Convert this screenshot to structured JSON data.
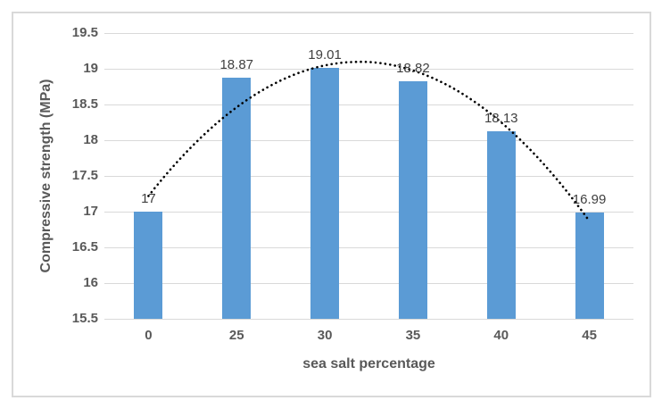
{
  "chart_data": {
    "type": "bar",
    "title": "",
    "xlabel": "sea salt percentage",
    "ylabel": "Compressive strength (MPa)",
    "categories": [
      "0",
      "25",
      "30",
      "35",
      "40",
      "45"
    ],
    "values": [
      17,
      18.87,
      19.01,
      18.82,
      18.13,
      16.99
    ],
    "data_labels": [
      "17",
      "18.87",
      "19.01",
      "18.82",
      "18.13",
      "16.99"
    ],
    "ylim": [
      15.5,
      19.5
    ],
    "ytick_step": 0.5,
    "yticks_top_to_bottom": [
      "19.5",
      "19",
      "18.5",
      "18",
      "17.5",
      "17",
      "16.5",
      "16",
      "15.5"
    ],
    "grid": true,
    "legend": "none",
    "trendline": {
      "type": "polynomial",
      "order": 2,
      "line_style": "dotted",
      "color": "#000000"
    },
    "colors": {
      "bar": "#5B9BD5",
      "gridline": "#D9D9D9",
      "border": "#D9D9D9",
      "axis_text": "#595959",
      "data_label": "#404040",
      "background": "#FFFFFF"
    }
  }
}
